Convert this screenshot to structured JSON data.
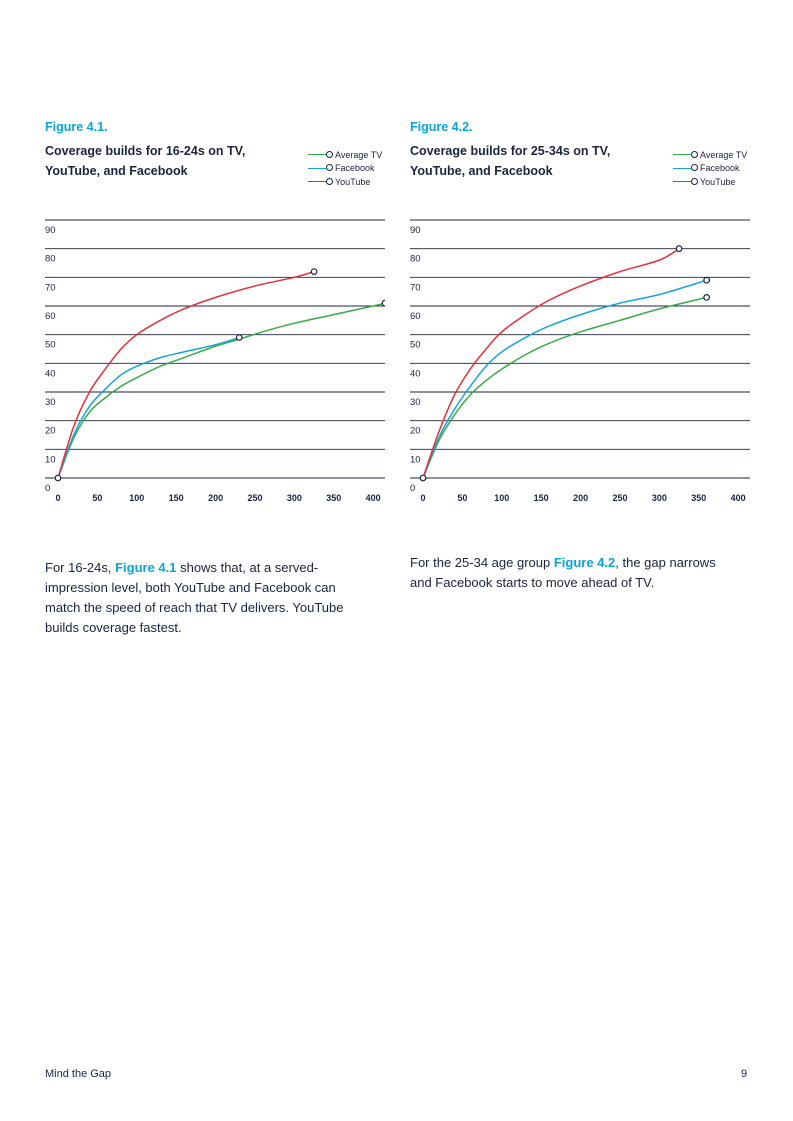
{
  "chart_data": [
    {
      "type": "line",
      "figure_label": "Figure 4.1.",
      "title": "Coverage builds for 16-24s on TV, YouTube, and Facebook",
      "xlim": [
        0,
        415
      ],
      "ylim": [
        0,
        90
      ],
      "xticks": [
        0,
        50,
        100,
        150,
        200,
        250,
        300,
        350,
        400
      ],
      "yticks": [
        0,
        10,
        20,
        30,
        40,
        50,
        60,
        70,
        80,
        90
      ],
      "legend_position": "top-right",
      "series": [
        {
          "name": "Average TV",
          "color": "#3aaa48",
          "points": [
            [
              0,
              0
            ],
            [
              20,
              14
            ],
            [
              40,
              23
            ],
            [
              60,
              28
            ],
            [
              80,
              32
            ],
            [
              100,
              35
            ],
            [
              130,
              39
            ],
            [
              160,
              42
            ],
            [
              200,
              46
            ],
            [
              225,
              48
            ],
            [
              260,
              51
            ],
            [
              300,
              54
            ],
            [
              350,
              57
            ],
            [
              400,
              60
            ],
            [
              415,
              61
            ]
          ]
        },
        {
          "name": "Facebook",
          "color": "#19a5d4",
          "points": [
            [
              0,
              0
            ],
            [
              20,
              15
            ],
            [
              40,
              25
            ],
            [
              60,
              31
            ],
            [
              80,
              36
            ],
            [
              100,
              39
            ],
            [
              130,
              42
            ],
            [
              160,
              44
            ],
            [
              200,
              46.5
            ],
            [
              230,
              49
            ]
          ]
        },
        {
          "name": "YouTube",
          "color": "#e0323c",
          "points": [
            [
              0,
              0
            ],
            [
              20,
              18
            ],
            [
              40,
              30
            ],
            [
              60,
              38
            ],
            [
              80,
              45
            ],
            [
              100,
              50
            ],
            [
              130,
              55
            ],
            [
              160,
              59
            ],
            [
              200,
              63
            ],
            [
              250,
              67
            ],
            [
              300,
              70
            ],
            [
              325,
              72
            ]
          ]
        }
      ]
    },
    {
      "type": "line",
      "figure_label": "Figure 4.2.",
      "title": "Coverage builds for 25-34s on TV, YouTube, and Facebook",
      "xlim": [
        0,
        415
      ],
      "ylim": [
        0,
        90
      ],
      "xticks": [
        0,
        50,
        100,
        150,
        200,
        250,
        300,
        350,
        400
      ],
      "yticks": [
        0,
        10,
        20,
        30,
        40,
        50,
        60,
        70,
        80,
        90
      ],
      "legend_position": "top-right",
      "series": [
        {
          "name": "Average TV",
          "color": "#3aaa48",
          "points": [
            [
              0,
              0
            ],
            [
              20,
              13
            ],
            [
              40,
              22
            ],
            [
              60,
              29
            ],
            [
              80,
              34
            ],
            [
              100,
              38
            ],
            [
              130,
              43
            ],
            [
              160,
              47
            ],
            [
              200,
              51
            ],
            [
              250,
              55
            ],
            [
              300,
              59
            ],
            [
              360,
              63
            ]
          ]
        },
        {
          "name": "Facebook",
          "color": "#19a5d4",
          "points": [
            [
              0,
              0
            ],
            [
              20,
              14
            ],
            [
              40,
              24
            ],
            [
              60,
              32
            ],
            [
              80,
              39
            ],
            [
              100,
              44
            ],
            [
              130,
              49
            ],
            [
              160,
              53
            ],
            [
              200,
              57
            ],
            [
              250,
              61
            ],
            [
              300,
              64
            ],
            [
              360,
              69
            ]
          ]
        },
        {
          "name": "YouTube",
          "color": "#e0323c",
          "points": [
            [
              0,
              0
            ],
            [
              20,
              16
            ],
            [
              40,
              29
            ],
            [
              60,
              38
            ],
            [
              80,
              45
            ],
            [
              100,
              51
            ],
            [
              130,
              57
            ],
            [
              160,
              62
            ],
            [
              200,
              67
            ],
            [
              250,
              72
            ],
            [
              300,
              76
            ],
            [
              325,
              80
            ]
          ]
        }
      ]
    }
  ],
  "figure1": {
    "label": "Figure 4.1.",
    "title": "Coverage builds for 16-24s on TV, YouTube, and Facebook",
    "paragraph_before": "For 16-24s, ",
    "paragraph_link": "Figure 4.1",
    "paragraph_after": " shows that, at a served-impression level, both YouTube and Facebook can match the speed of reach that TV delivers. YouTube builds coverage fastest."
  },
  "figure2": {
    "label": "Figure 4.2.",
    "title": "Coverage builds for 25-34s on TV, YouTube, and Facebook",
    "paragraph_before": "For the 25-34 age group ",
    "paragraph_link": "Figure 4.2",
    "paragraph_after": ", the gap narrows and Facebook starts to move ahead of TV."
  },
  "legend": {
    "items": [
      {
        "label": "Average TV",
        "color": "#3aaa48"
      },
      {
        "label": "Facebook",
        "color": "#19a5d4"
      },
      {
        "label": "YouTube",
        "color": "#e0323c"
      }
    ]
  },
  "footer": {
    "left": "Mind the Gap",
    "page": "9"
  }
}
